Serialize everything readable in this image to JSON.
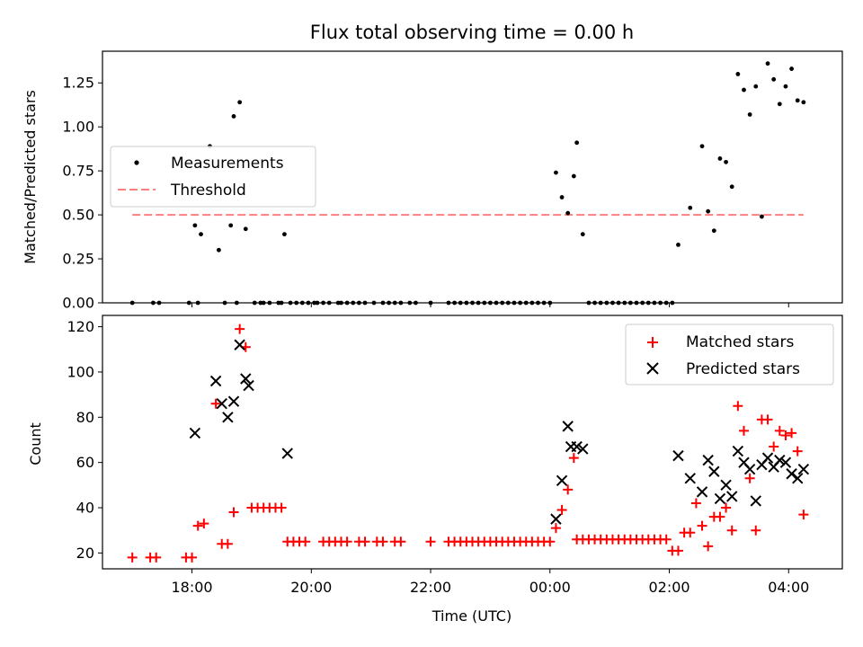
{
  "colors": {
    "measurement": "#000000",
    "threshold": "#ff7f7f",
    "matched": "#ff0000",
    "predicted": "#000000"
  },
  "chart_data": [
    {
      "type": "scatter",
      "title": "Flux total observing time = 0.00 h",
      "xlabel": "",
      "ylabel": "Matched/Predicted stars",
      "x_unit": "hours relative to 00:00 UTC (negative = previous evening)",
      "xlim": [
        -7.5,
        4.9
      ],
      "ylim": [
        0,
        1.43
      ],
      "yticks": [
        0.0,
        0.25,
        0.5,
        0.75,
        1.0,
        1.25
      ],
      "ytick_labels": [
        "0.00",
        "0.25",
        "0.50",
        "0.75",
        "1.00",
        "1.25"
      ],
      "grid": false,
      "legend": {
        "placement": "center-left",
        "entries": [
          "Measurements",
          "Threshold"
        ]
      },
      "series": [
        {
          "name": "Measurements",
          "marker": "dot",
          "x": [
            -7.0,
            -6.65,
            -6.55,
            -6.05,
            -5.95,
            -5.9,
            -5.85,
            -5.7,
            -5.55,
            -5.45,
            -5.35,
            -5.3,
            -5.25,
            -5.2,
            -5.1,
            -4.95,
            -4.85,
            -4.8,
            -4.7,
            -4.55,
            -4.5,
            -4.45,
            -4.35,
            -4.25,
            -4.15,
            -4.05,
            -3.95,
            -3.9,
            -3.8,
            -3.7,
            -3.55,
            -3.5,
            -3.4,
            -3.3,
            -3.2,
            -3.1,
            -2.95,
            -2.8,
            -2.7,
            -2.6,
            -2.5,
            -2.35,
            -2.25,
            -2.0,
            -1.7,
            -1.6,
            -1.5,
            -1.4,
            -1.3,
            -1.2,
            -1.1,
            -1.0,
            -0.9,
            -0.8,
            -0.7,
            -0.6,
            -0.5,
            -0.4,
            -0.3,
            -0.2,
            -0.1,
            0.0,
            0.1,
            0.2,
            0.3,
            0.4,
            0.45,
            0.55,
            0.65,
            0.75,
            0.85,
            0.95,
            1.05,
            1.15,
            1.25,
            1.35,
            1.45,
            1.55,
            1.65,
            1.75,
            1.85,
            1.95,
            2.05,
            2.15,
            2.35,
            2.55,
            2.65,
            2.75,
            2.85,
            2.95,
            3.05,
            3.15,
            3.25,
            3.35,
            3.45,
            3.55,
            3.65,
            3.75,
            3.85,
            3.95,
            4.05,
            4.15,
            4.25
          ],
          "y": [
            0,
            0,
            0,
            0,
            0.44,
            0,
            0.39,
            0.89,
            0.3,
            0,
            0.44,
            1.06,
            0,
            1.14,
            0.42,
            0,
            0,
            0,
            0,
            0,
            0,
            0.39,
            0,
            0,
            0,
            0,
            0,
            0,
            0,
            0,
            0,
            0,
            0,
            0,
            0,
            0,
            0,
            0,
            0,
            0,
            0,
            0,
            0,
            0,
            0,
            0,
            0,
            0,
            0,
            0,
            0,
            0,
            0,
            0,
            0,
            0,
            0,
            0,
            0,
            0,
            0,
            0,
            0.74,
            0.6,
            0.51,
            0.72,
            0.91,
            0.39,
            0,
            0,
            0,
            0,
            0,
            0,
            0,
            0,
            0,
            0,
            0,
            0,
            0,
            0,
            0,
            0.33,
            0.54,
            0.89,
            0.52,
            0.41,
            0.82,
            0.8,
            0.66,
            1.3,
            1.21,
            1.07,
            1.23,
            0.49,
            1.36,
            1.27,
            1.13,
            1.23,
            1.33,
            1.15,
            1.14
          ]
        },
        {
          "name": "Threshold",
          "marker": "dashed-line",
          "x": [
            -7.0,
            4.25
          ],
          "y": [
            0.5,
            0.5
          ]
        }
      ]
    },
    {
      "type": "scatter",
      "title": "",
      "xlabel": "Time (UTC)",
      "ylabel": "Count",
      "xlim": [
        -7.5,
        4.9
      ],
      "ylim": [
        13,
        125
      ],
      "xticks": [
        -6,
        -4,
        -2,
        0,
        2,
        4
      ],
      "xtick_labels": [
        "18:00",
        "20:00",
        "22:00",
        "00:00",
        "02:00",
        "04:00"
      ],
      "yticks": [
        20,
        40,
        60,
        80,
        100,
        120
      ],
      "ytick_labels": [
        "20",
        "40",
        "60",
        "80",
        "100",
        "120"
      ],
      "grid": false,
      "legend": {
        "placement": "top-right",
        "entries": [
          "Matched stars",
          "Predicted stars"
        ]
      },
      "series": [
        {
          "name": "Matched stars",
          "marker": "plus",
          "x": [
            -7.0,
            -6.7,
            -6.6,
            -6.1,
            -6.0,
            -5.9,
            -5.8,
            -5.6,
            -5.5,
            -5.4,
            -5.3,
            -5.2,
            -5.1,
            -5.0,
            -4.9,
            -4.8,
            -4.7,
            -4.6,
            -4.5,
            -4.4,
            -4.3,
            -4.2,
            -4.1,
            -3.8,
            -3.7,
            -3.6,
            -3.5,
            -3.4,
            -3.2,
            -3.1,
            -2.9,
            -2.8,
            -2.6,
            -2.5,
            -2.0,
            -1.7,
            -1.6,
            -1.5,
            -1.4,
            -1.3,
            -1.2,
            -1.1,
            -1.0,
            -0.9,
            -0.8,
            -0.7,
            -0.6,
            -0.5,
            -0.4,
            -0.3,
            -0.2,
            -0.1,
            0.0,
            0.1,
            0.2,
            0.3,
            0.4,
            0.45,
            0.55,
            0.65,
            0.75,
            0.85,
            0.95,
            1.05,
            1.15,
            1.25,
            1.35,
            1.45,
            1.55,
            1.65,
            1.75,
            1.85,
            1.95,
            2.05,
            2.15,
            2.25,
            2.35,
            2.45,
            2.55,
            2.65,
            2.75,
            2.85,
            2.95,
            3.05,
            3.15,
            3.25,
            3.35,
            3.45,
            3.55,
            3.65,
            3.75,
            3.85,
            3.95,
            4.05,
            4.15,
            4.25
          ],
          "y": [
            18,
            18,
            18,
            18,
            18,
            32,
            33,
            86,
            24,
            24,
            38,
            119,
            111,
            40,
            40,
            40,
            40,
            40,
            40,
            25,
            25,
            25,
            25,
            25,
            25,
            25,
            25,
            25,
            25,
            25,
            25,
            25,
            25,
            25,
            25,
            25,
            25,
            25,
            25,
            25,
            25,
            25,
            25,
            25,
            25,
            25,
            25,
            25,
            25,
            25,
            25,
            25,
            25,
            31,
            39,
            48,
            62,
            26,
            26,
            26,
            26,
            26,
            26,
            26,
            26,
            26,
            26,
            26,
            26,
            26,
            26,
            26,
            26,
            21,
            21,
            29,
            29,
            42,
            32,
            23,
            36,
            36,
            40,
            30,
            85,
            74,
            53,
            30,
            79,
            79,
            67,
            74,
            72,
            73,
            65,
            37
          ]
        },
        {
          "name": "Predicted stars",
          "marker": "x",
          "x": [
            -5.95,
            -5.6,
            -5.5,
            -5.4,
            -5.3,
            -5.2,
            -5.1,
            -5.05,
            -4.4,
            0.1,
            0.2,
            0.3,
            0.35,
            0.45,
            0.55,
            2.15,
            2.35,
            2.55,
            2.65,
            2.75,
            2.85,
            2.95,
            3.05,
            3.15,
            3.25,
            3.35,
            3.45,
            3.55,
            3.65,
            3.75,
            3.85,
            3.95,
            4.05,
            4.15,
            4.25
          ],
          "y": [
            73,
            96,
            86,
            80,
            87,
            112,
            97,
            94,
            64,
            35,
            52,
            76,
            67,
            67,
            66,
            63,
            53,
            47,
            61,
            56,
            44,
            50,
            45,
            65,
            60,
            57,
            43,
            59,
            62,
            58,
            61,
            60,
            55,
            53,
            57
          ]
        }
      ]
    }
  ]
}
